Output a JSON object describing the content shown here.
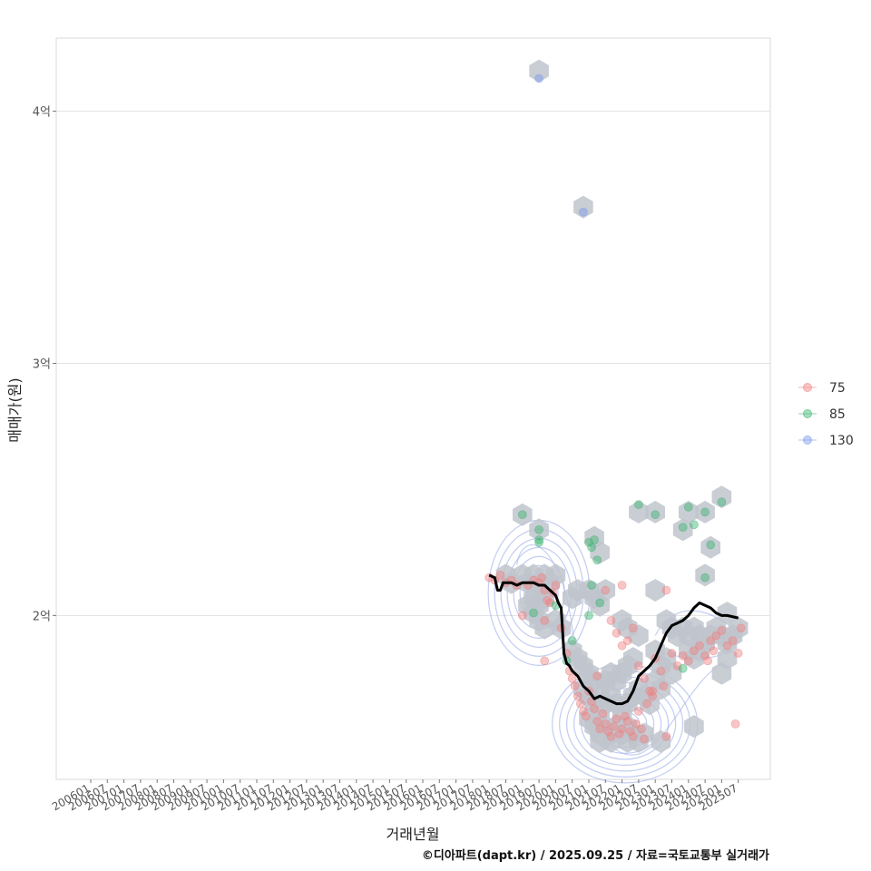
{
  "chart_data": {
    "type": "scatter",
    "xlabel": "거래년월",
    "ylabel": "매매가(원)",
    "caption": "©디아파트(dapt.kr) / 2025.09.25 / 자료=국토교통부 실거래가",
    "x_ticks": [
      "200601",
      "200607",
      "200701",
      "200707",
      "200801",
      "200807",
      "200901",
      "200907",
      "201001",
      "201007",
      "201101",
      "201107",
      "201201",
      "201207",
      "201301",
      "201307",
      "201401",
      "201407",
      "201501",
      "201507",
      "201601",
      "201607",
      "201701",
      "201707",
      "201801",
      "201807",
      "201901",
      "201907",
      "202001",
      "202007",
      "202101",
      "202107",
      "202201",
      "202207",
      "202301",
      "202307",
      "202401",
      "202407",
      "202501",
      "202507"
    ],
    "y_ticks": [
      {
        "value": 2.0,
        "label": "2억"
      },
      {
        "value": 3.0,
        "label": "3억"
      },
      {
        "value": 4.0,
        "label": "4억"
      }
    ],
    "ylim": [
      1.35,
      4.29
    ],
    "y_unit": "억",
    "grid": "horizontal",
    "legend_position": "right",
    "colors": {
      "75": "#f08080",
      "85": "#3cb371",
      "130": "#7b9bea",
      "hex": "#bfc4cc",
      "density": "#8fa3e6",
      "trend": "#000000"
    },
    "series": [
      {
        "name": "75",
        "color": "#f08080",
        "points": [
          [
            "201801",
            2.15
          ],
          [
            "201803",
            2.14
          ],
          [
            "201805",
            2.16
          ],
          [
            "201807",
            2.13
          ],
          [
            "201809",
            2.14
          ],
          [
            "201811",
            2.12
          ],
          [
            "201901",
            2.0
          ],
          [
            "201903",
            2.12
          ],
          [
            "201905",
            2.14
          ],
          [
            "201907",
            2.13
          ],
          [
            "201908",
            2.15
          ],
          [
            "201909",
            2.1
          ],
          [
            "201910",
            2.06
          ],
          [
            "201911",
            2.05
          ],
          [
            "201912",
            2.09
          ],
          [
            "202001",
            2.12
          ],
          [
            "201909",
            1.82
          ],
          [
            "201909",
            1.98
          ],
          [
            "202003",
            1.95
          ],
          [
            "202005",
            1.85
          ],
          [
            "202006",
            1.78
          ],
          [
            "202007",
            1.75
          ],
          [
            "202008",
            1.72
          ],
          [
            "202009",
            1.68
          ],
          [
            "202010",
            1.65
          ],
          [
            "202011",
            1.62
          ],
          [
            "202012",
            1.6
          ],
          [
            "202101",
            1.7
          ],
          [
            "202102",
            1.66
          ],
          [
            "202103",
            1.63
          ],
          [
            "202104",
            1.58
          ],
          [
            "202105",
            1.55
          ],
          [
            "202106",
            1.61
          ],
          [
            "202107",
            1.57
          ],
          [
            "202108",
            1.54
          ],
          [
            "202109",
            1.52
          ],
          [
            "202110",
            1.56
          ],
          [
            "202111",
            1.59
          ],
          [
            "202112",
            1.53
          ],
          [
            "202201",
            1.55
          ],
          [
            "202202",
            1.6
          ],
          [
            "202203",
            1.58
          ],
          [
            "202204",
            1.54
          ],
          [
            "202205",
            1.52
          ],
          [
            "202206",
            1.57
          ],
          [
            "202207",
            1.62
          ],
          [
            "202208",
            1.55
          ],
          [
            "202209",
            1.51
          ],
          [
            "202210",
            1.65
          ],
          [
            "202211",
            1.7
          ],
          [
            "202212",
            1.68
          ],
          [
            "202201",
            1.88
          ],
          [
            "202203",
            1.9
          ],
          [
            "202205",
            1.95
          ],
          [
            "202107",
            2.1
          ],
          [
            "202109",
            1.98
          ],
          [
            "202111",
            1.93
          ],
          [
            "202201",
            2.12
          ],
          [
            "202207",
            1.8
          ],
          [
            "202209",
            1.75
          ],
          [
            "202301",
            1.83
          ],
          [
            "202303",
            1.78
          ],
          [
            "202304",
            1.72
          ],
          [
            "202305",
            2.1
          ],
          [
            "202307",
            1.85
          ],
          [
            "202309",
            1.8
          ],
          [
            "202311",
            1.84
          ],
          [
            "202401",
            1.82
          ],
          [
            "202403",
            1.86
          ],
          [
            "202405",
            1.88
          ],
          [
            "202407",
            1.84
          ],
          [
            "202409",
            1.9
          ],
          [
            "202410",
            1.86
          ],
          [
            "202411",
            1.92
          ],
          [
            "202501",
            1.94
          ],
          [
            "202503",
            1.88
          ],
          [
            "202505",
            1.9
          ],
          [
            "202507",
            1.85
          ],
          [
            "202508",
            1.95
          ],
          [
            "202506",
            1.57
          ],
          [
            "202408",
            1.82
          ],
          [
            "202305",
            1.52
          ],
          [
            "202212",
            1.7
          ],
          [
            "202104",
            1.76
          ]
        ]
      },
      {
        "name": "85",
        "color": "#3cb371",
        "points": [
          [
            "201901",
            2.4
          ],
          [
            "201907",
            2.34
          ],
          [
            "201907",
            2.3
          ],
          [
            "201907",
            2.29
          ],
          [
            "201905",
            2.01
          ],
          [
            "202001",
            2.04
          ],
          [
            "202005",
            1.82
          ],
          [
            "202007",
            1.9
          ],
          [
            "202101",
            2.29
          ],
          [
            "202102",
            2.27
          ],
          [
            "202103",
            2.3
          ],
          [
            "202104",
            2.22
          ],
          [
            "202102",
            2.12
          ],
          [
            "202105",
            2.05
          ],
          [
            "202207",
            2.44
          ],
          [
            "202301",
            2.4
          ],
          [
            "202311",
            2.35
          ],
          [
            "202401",
            2.43
          ],
          [
            "202403",
            2.36
          ],
          [
            "202407",
            2.41
          ],
          [
            "202501",
            2.45
          ],
          [
            "202409",
            2.28
          ],
          [
            "202407",
            2.15
          ],
          [
            "202311",
            1.79
          ],
          [
            "202101",
            2.0
          ]
        ]
      },
      {
        "name": "130",
        "color": "#7b9bea",
        "points": [
          [
            "201907",
            4.13
          ],
          [
            "202011",
            3.6
          ]
        ]
      }
    ],
    "trend": {
      "name": "",
      "points": [
        [
          "201801",
          2.16
        ],
        [
          "201803",
          2.15
        ],
        [
          "201804",
          2.1
        ],
        [
          "201805",
          2.1
        ],
        [
          "201806",
          2.13
        ],
        [
          "201809",
          2.13
        ],
        [
          "201811",
          2.12
        ],
        [
          "201901",
          2.13
        ],
        [
          "201905",
          2.13
        ],
        [
          "201907",
          2.12
        ],
        [
          "201909",
          2.12
        ],
        [
          "201911",
          2.1
        ],
        [
          "202001",
          2.08
        ],
        [
          "202002",
          2.05
        ],
        [
          "202003",
          2.03
        ],
        [
          "202004",
          1.85
        ],
        [
          "202005",
          1.81
        ],
        [
          "202006",
          1.8
        ],
        [
          "202007",
          1.78
        ],
        [
          "202009",
          1.76
        ],
        [
          "202011",
          1.72
        ],
        [
          "202101",
          1.7
        ],
        [
          "202103",
          1.67
        ],
        [
          "202105",
          1.68
        ],
        [
          "202107",
          1.67
        ],
        [
          "202109",
          1.66
        ],
        [
          "202111",
          1.65
        ],
        [
          "202201",
          1.65
        ],
        [
          "202203",
          1.66
        ],
        [
          "202205",
          1.7
        ],
        [
          "202207",
          1.76
        ],
        [
          "202209",
          1.78
        ],
        [
          "202211",
          1.8
        ],
        [
          "202301",
          1.83
        ],
        [
          "202303",
          1.88
        ],
        [
          "202305",
          1.93
        ],
        [
          "202307",
          1.96
        ],
        [
          "202309",
          1.97
        ],
        [
          "202311",
          1.98
        ],
        [
          "202401",
          2.0
        ],
        [
          "202403",
          2.03
        ],
        [
          "202405",
          2.05
        ],
        [
          "202407",
          2.04
        ],
        [
          "202409",
          2.03
        ],
        [
          "202411",
          2.01
        ],
        [
          "202501",
          2.0
        ],
        [
          "202503",
          2.0
        ],
        [
          "202507",
          1.99
        ]
      ]
    },
    "hexbins": [
      [
        "201907",
        4.16
      ],
      [
        "202011",
        3.62
      ],
      [
        "201901",
        2.4
      ],
      [
        "201907",
        2.34
      ],
      [
        "202103",
        2.31
      ],
      [
        "202105",
        2.25
      ],
      [
        "202207",
        2.41
      ],
      [
        "202301",
        2.41
      ],
      [
        "202311",
        2.34
      ],
      [
        "202401",
        2.41
      ],
      [
        "202407",
        2.41
      ],
      [
        "202501",
        2.47
      ],
      [
        "202409",
        2.27
      ],
      [
        "202407",
        2.16
      ],
      [
        "201807",
        2.16
      ],
      [
        "201809",
        2.13
      ],
      [
        "201901",
        2.16
      ],
      [
        "201903",
        2.13
      ],
      [
        "201905",
        2.16
      ],
      [
        "201907",
        2.13
      ],
      [
        "201909",
        2.16
      ],
      [
        "201911",
        2.13
      ],
      [
        "202001",
        2.16
      ],
      [
        "201907",
        2.1
      ],
      [
        "201905",
        2.07
      ],
      [
        "201907",
        2.04
      ],
      [
        "201909",
        2.07
      ],
      [
        "201903",
        2.04
      ],
      [
        "201905",
        2.01
      ],
      [
        "201907",
        1.98
      ],
      [
        "201909",
        1.95
      ],
      [
        "202001",
        1.98
      ],
      [
        "202003",
        1.95
      ],
      [
        "202007",
        2.07
      ],
      [
        "202009",
        2.1
      ],
      [
        "202101",
        2.1
      ],
      [
        "202103",
        2.07
      ],
      [
        "202105",
        2.04
      ],
      [
        "202107",
        2.1
      ],
      [
        "202201",
        1.98
      ],
      [
        "202203",
        1.95
      ],
      [
        "202207",
        1.92
      ],
      [
        "202301",
        2.1
      ],
      [
        "202305",
        1.98
      ],
      [
        "202307",
        1.95
      ],
      [
        "202309",
        1.92
      ],
      [
        "202311",
        1.95
      ],
      [
        "202401",
        1.92
      ],
      [
        "202403",
        1.95
      ],
      [
        "202405",
        1.92
      ],
      [
        "202407",
        1.89
      ],
      [
        "202409",
        1.92
      ],
      [
        "202411",
        1.95
      ],
      [
        "202501",
        1.92
      ],
      [
        "202503",
        1.89
      ],
      [
        "202505",
        1.92
      ],
      [
        "202507",
        1.95
      ],
      [
        "202503",
        2.01
      ],
      [
        "202401",
        1.86
      ],
      [
        "202403",
        1.83
      ],
      [
        "202405",
        1.86
      ],
      [
        "202301",
        1.86
      ],
      [
        "202305",
        1.83
      ],
      [
        "202303",
        1.8
      ],
      [
        "202307",
        1.77
      ],
      [
        "202503",
        1.83
      ],
      [
        "202501",
        1.77
      ],
      [
        "202007",
        1.86
      ],
      [
        "202009",
        1.83
      ],
      [
        "202011",
        1.8
      ],
      [
        "202101",
        1.77
      ],
      [
        "202103",
        1.74
      ],
      [
        "202105",
        1.71
      ],
      [
        "202107",
        1.74
      ],
      [
        "202109",
        1.77
      ],
      [
        "202111",
        1.74
      ],
      [
        "202201",
        1.77
      ],
      [
        "202203",
        1.8
      ],
      [
        "202205",
        1.83
      ],
      [
        "202301",
        1.74
      ],
      [
        "202303",
        1.71
      ],
      [
        "202011",
        1.71
      ],
      [
        "202101",
        1.68
      ],
      [
        "202103",
        1.65
      ],
      [
        "202105",
        1.62
      ],
      [
        "202107",
        1.65
      ],
      [
        "202109",
        1.68
      ],
      [
        "202111",
        1.65
      ],
      [
        "202201",
        1.62
      ],
      [
        "202203",
        1.65
      ],
      [
        "202205",
        1.68
      ],
      [
        "202207",
        1.71
      ],
      [
        "202209",
        1.68
      ],
      [
        "202211",
        1.65
      ],
      [
        "202101",
        1.59
      ],
      [
        "202103",
        1.56
      ],
      [
        "202105",
        1.53
      ],
      [
        "202107",
        1.56
      ],
      [
        "202109",
        1.53
      ],
      [
        "202111",
        1.56
      ],
      [
        "202201",
        1.53
      ],
      [
        "202203",
        1.56
      ],
      [
        "202205",
        1.53
      ],
      [
        "202207",
        1.5
      ],
      [
        "202209",
        1.53
      ],
      [
        "202105",
        1.5
      ],
      [
        "202109",
        1.5
      ],
      [
        "202203",
        1.5
      ],
      [
        "202303",
        1.5
      ],
      [
        "202403",
        1.56
      ]
    ],
    "density_centers": [
      {
        "x": "201907",
        "y": 2.09,
        "rings": 8
      },
      {
        "x": "202202",
        "y": 1.57,
        "rings": 10
      }
    ]
  }
}
